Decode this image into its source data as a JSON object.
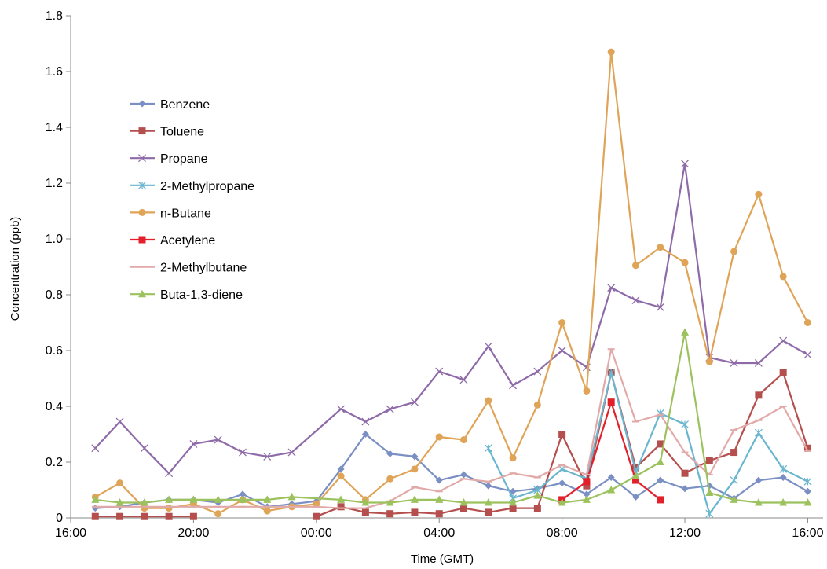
{
  "chart_data": {
    "type": "line",
    "title": "",
    "xlabel": "Time (GMT)",
    "ylabel": "Concentration (ppb)",
    "xlim": [
      16.0,
      40.5
    ],
    "ylim": [
      0,
      1.8
    ],
    "grid": false,
    "legend_position": "top-left",
    "x_ticks": [
      {
        "value": 16,
        "label": "16:00"
      },
      {
        "value": 20,
        "label": "20:00"
      },
      {
        "value": 24,
        "label": "00:00"
      },
      {
        "value": 28,
        "label": "04:00"
      },
      {
        "value": 32,
        "label": "08:00"
      },
      {
        "value": 36,
        "label": "12:00"
      },
      {
        "value": 40,
        "label": "16:00"
      }
    ],
    "y_ticks": [
      {
        "value": 0,
        "label": "0"
      },
      {
        "value": 0.2,
        "label": "0.2"
      },
      {
        "value": 0.4,
        "label": "0.4"
      },
      {
        "value": 0.6,
        "label": "0.6"
      },
      {
        "value": 0.8,
        "label": "0.8"
      },
      {
        "value": 1.0,
        "label": "1.0"
      },
      {
        "value": 1.2,
        "label": "1.2"
      },
      {
        "value": 1.4,
        "label": "1.4"
      },
      {
        "value": 1.6,
        "label": "1.6"
      },
      {
        "value": 1.8,
        "label": "1.8"
      }
    ],
    "series": [
      {
        "name": "Benzene",
        "color": "#7a8fc3",
        "marker": "diamond",
        "points": [
          [
            16.8,
            0.035
          ],
          [
            17.6,
            0.04
          ],
          [
            18.4,
            0.055
          ],
          [
            19.2,
            0.065
          ],
          [
            20.0,
            0.065
          ],
          [
            20.8,
            0.055
          ],
          [
            21.6,
            0.085
          ],
          [
            22.4,
            0.04
          ],
          [
            23.2,
            0.05
          ],
          [
            24.0,
            0.06
          ],
          [
            24.8,
            0.175
          ],
          [
            25.6,
            0.3
          ],
          [
            26.4,
            0.23
          ],
          [
            27.2,
            0.22
          ],
          [
            28.0,
            0.135
          ],
          [
            28.8,
            0.155
          ],
          [
            29.6,
            0.115
          ],
          [
            30.4,
            0.095
          ],
          [
            31.2,
            0.105
          ],
          [
            32.0,
            0.125
          ],
          [
            32.8,
            0.085
          ],
          [
            33.6,
            0.145
          ],
          [
            34.4,
            0.075
          ],
          [
            35.2,
            0.135
          ],
          [
            36.0,
            0.105
          ],
          [
            36.8,
            0.115
          ],
          [
            37.6,
            0.07
          ],
          [
            38.4,
            0.135
          ],
          [
            39.2,
            0.145
          ],
          [
            40.0,
            0.095
          ]
        ]
      },
      {
        "name": "Toluene",
        "color": "#b44f4d",
        "marker": "square",
        "points": [
          [
            16.8,
            0.005
          ],
          [
            17.6,
            0.005
          ],
          [
            18.4,
            0.005
          ],
          [
            19.2,
            0.005
          ],
          [
            20.0,
            0.005
          ],
          null,
          null,
          null,
          null,
          [
            24.0,
            0.005
          ],
          [
            24.8,
            0.04
          ],
          [
            25.6,
            0.02
          ],
          [
            26.4,
            0.015
          ],
          [
            27.2,
            0.02
          ],
          [
            28.0,
            0.015
          ],
          [
            28.8,
            0.035
          ],
          [
            29.6,
            0.02
          ],
          [
            30.4,
            0.035
          ],
          [
            31.2,
            0.035
          ],
          [
            32.0,
            0.3
          ],
          [
            32.8,
            0.115
          ],
          [
            33.6,
            0.52
          ],
          [
            34.4,
            0.18
          ],
          [
            35.2,
            0.265
          ],
          [
            36.0,
            0.16
          ],
          [
            36.8,
            0.205
          ],
          [
            37.6,
            0.235
          ],
          [
            38.4,
            0.44
          ],
          [
            39.2,
            0.52
          ],
          [
            40.0,
            0.25
          ]
        ]
      },
      {
        "name": "Propane",
        "color": "#8e6aa8",
        "marker": "x",
        "points": [
          [
            16.8,
            0.25
          ],
          [
            17.6,
            0.345
          ],
          [
            18.4,
            0.25
          ],
          [
            19.2,
            0.16
          ],
          [
            20.0,
            0.265
          ],
          [
            20.8,
            0.28
          ],
          [
            21.6,
            0.235
          ],
          [
            22.4,
            0.22
          ],
          [
            23.2,
            0.235
          ],
          [
            24.8,
            0.39
          ],
          [
            25.6,
            0.345
          ],
          [
            26.4,
            0.39
          ],
          [
            27.2,
            0.415
          ],
          [
            28.0,
            0.525
          ],
          [
            28.8,
            0.495
          ],
          [
            29.6,
            0.615
          ],
          [
            30.4,
            0.475
          ],
          [
            31.2,
            0.525
          ],
          [
            32.0,
            0.6
          ],
          [
            32.8,
            0.54
          ],
          [
            33.6,
            0.825
          ],
          [
            34.4,
            0.78
          ],
          [
            35.2,
            0.755
          ],
          [
            36.0,
            1.27
          ],
          [
            36.8,
            0.575
          ],
          [
            37.6,
            0.555
          ],
          [
            38.4,
            0.555
          ],
          [
            39.2,
            0.635
          ],
          [
            40.0,
            0.585
          ]
        ]
      },
      {
        "name": "2-Methylpropane",
        "color": "#6ab6cf",
        "marker": "asterisk",
        "points": [
          [
            29.6,
            0.25
          ],
          [
            30.4,
            0.07
          ],
          [
            31.2,
            0.1
          ],
          [
            32.0,
            0.175
          ],
          [
            32.8,
            0.14
          ],
          [
            33.6,
            0.52
          ],
          [
            34.4,
            0.165
          ],
          [
            35.2,
            0.375
          ],
          [
            36.0,
            0.335
          ],
          [
            36.8,
            0.015
          ],
          [
            37.6,
            0.135
          ],
          [
            38.4,
            0.305
          ],
          [
            39.2,
            0.175
          ],
          [
            40.0,
            0.13
          ]
        ]
      },
      {
        "name": "n-Butane",
        "color": "#dfa458",
        "marker": "circle",
        "points": [
          [
            16.8,
            0.075
          ],
          [
            17.6,
            0.125
          ],
          [
            18.4,
            0.035
          ],
          [
            19.2,
            0.035
          ],
          [
            20.0,
            0.05
          ],
          [
            20.8,
            0.015
          ],
          [
            21.6,
            0.065
          ],
          [
            22.4,
            0.025
          ],
          [
            23.2,
            0.04
          ],
          [
            24.0,
            0.05
          ],
          [
            24.8,
            0.15
          ],
          [
            25.6,
            0.065
          ],
          [
            26.4,
            0.14
          ],
          [
            27.2,
            0.175
          ],
          [
            28.0,
            0.29
          ],
          [
            28.8,
            0.28
          ],
          [
            29.6,
            0.42
          ],
          [
            30.4,
            0.215
          ],
          [
            31.2,
            0.405
          ],
          [
            32.0,
            0.7
          ],
          [
            32.8,
            0.455
          ],
          [
            33.6,
            1.67
          ],
          [
            34.4,
            0.905
          ],
          [
            35.2,
            0.97
          ],
          [
            36.0,
            0.915
          ],
          [
            36.8,
            0.56
          ],
          [
            37.6,
            0.955
          ],
          [
            38.4,
            1.16
          ],
          [
            39.2,
            0.865
          ],
          [
            40.0,
            0.7
          ]
        ]
      },
      {
        "name": "Acetylene",
        "color": "#e3202a",
        "marker": "square",
        "points": [
          [
            32.0,
            0.065
          ],
          [
            32.8,
            0.13
          ],
          [
            33.6,
            0.415
          ],
          [
            34.4,
            0.135
          ],
          [
            35.2,
            0.065
          ]
        ]
      },
      {
        "name": "2-Methylbutane",
        "color": "#e1a9a8",
        "marker": "dash",
        "points": [
          [
            16.8,
            0.04
          ],
          [
            17.6,
            0.04
          ],
          [
            18.4,
            0.04
          ],
          [
            19.2,
            0.04
          ],
          [
            20.0,
            0.04
          ],
          [
            20.8,
            0.04
          ],
          [
            21.6,
            0.04
          ],
          [
            22.4,
            0.04
          ],
          [
            23.2,
            0.04
          ],
          [
            24.0,
            0.04
          ],
          [
            24.8,
            0.035
          ],
          [
            25.6,
            0.035
          ],
          [
            26.4,
            0.06
          ],
          [
            27.2,
            0.11
          ],
          [
            28.0,
            0.095
          ],
          [
            28.8,
            0.14
          ],
          [
            29.6,
            0.13
          ],
          [
            30.4,
            0.16
          ],
          [
            31.2,
            0.145
          ],
          [
            32.0,
            0.19
          ],
          [
            32.8,
            0.155
          ],
          [
            33.6,
            0.605
          ],
          [
            34.4,
            0.345
          ],
          [
            35.2,
            0.37
          ],
          [
            36.0,
            0.235
          ],
          [
            36.8,
            0.155
          ],
          [
            37.6,
            0.315
          ],
          [
            38.4,
            0.35
          ],
          [
            39.2,
            0.4
          ],
          [
            40.0,
            0.24
          ]
        ]
      },
      {
        "name": "Buta-1,3-diene",
        "color": "#9bc25c",
        "marker": "triangle",
        "points": [
          [
            16.8,
            0.065
          ],
          [
            17.6,
            0.055
          ],
          [
            18.4,
            0.055
          ],
          [
            19.2,
            0.065
          ],
          [
            20.0,
            0.065
          ],
          [
            20.8,
            0.065
          ],
          [
            21.6,
            0.065
          ],
          [
            22.4,
            0.065
          ],
          [
            23.2,
            0.075
          ],
          [
            24.8,
            0.065
          ],
          [
            25.6,
            0.055
          ],
          [
            26.4,
            0.055
          ],
          [
            27.2,
            0.065
          ],
          [
            28.0,
            0.065
          ],
          [
            28.8,
            0.055
          ],
          [
            29.6,
            0.055
          ],
          [
            30.4,
            0.055
          ],
          [
            31.2,
            0.08
          ],
          [
            32.0,
            0.055
          ],
          [
            32.8,
            0.065
          ],
          [
            33.6,
            0.1
          ],
          [
            34.4,
            0.15
          ],
          [
            35.2,
            0.2
          ],
          [
            36.0,
            0.665
          ],
          [
            36.8,
            0.09
          ],
          [
            37.6,
            0.065
          ],
          [
            38.4,
            0.055
          ],
          [
            39.2,
            0.055
          ],
          [
            40.0,
            0.055
          ]
        ]
      }
    ]
  }
}
